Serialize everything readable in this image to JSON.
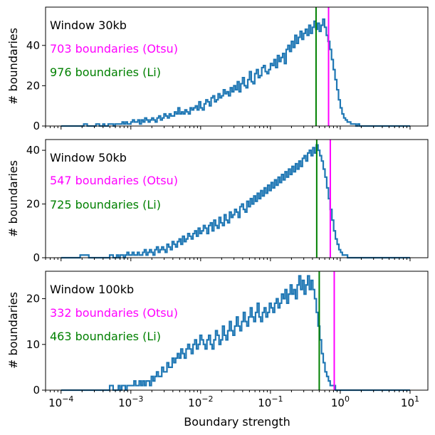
{
  "colors": {
    "hist": "#1f77b4",
    "otsu": "#ff00ff",
    "li": "#008000",
    "text": "#000000"
  },
  "chart_data": [
    {
      "type": "histogram",
      "xscale": "log",
      "xlim": [
        6e-05,
        0.00018
      ],
      "ylim": [
        0,
        59
      ],
      "yticks": [
        0,
        20,
        40
      ],
      "ylabel": "# boundaries",
      "annotations": [
        {
          "text": "Window 30kb",
          "color": "#000000"
        },
        {
          "text": "703 boundaries (Otsu)",
          "color": "#ff00ff"
        },
        {
          "text": "976 boundaries (Li)",
          "color": "#008000"
        }
      ],
      "vlines": [
        {
          "name": "Li threshold",
          "x": 0.45,
          "color": "#008000"
        },
        {
          "name": "Otsu threshold",
          "x": 0.68,
          "color": "#ff00ff"
        }
      ],
      "log_x_range": [
        -4,
        1
      ],
      "counts": [
        0,
        0,
        0,
        0,
        0,
        0,
        0,
        0,
        0,
        0,
        0,
        0,
        0,
        1,
        1,
        0,
        0,
        0,
        0,
        0,
        1,
        1,
        0,
        0,
        1,
        0,
        0,
        1,
        1,
        1,
        0,
        1,
        1,
        1,
        1,
        2,
        1,
        2,
        1,
        1,
        2,
        3,
        2,
        2,
        3,
        1,
        3,
        2,
        4,
        3,
        2,
        3,
        4,
        3,
        2,
        4,
        5,
        3,
        4,
        6,
        5,
        4,
        6,
        5,
        5,
        7,
        6,
        9,
        6,
        7,
        6,
        8,
        7,
        6,
        9,
        8,
        9,
        10,
        8,
        12,
        9,
        8,
        11,
        13,
        12,
        10,
        14,
        15,
        12,
        13,
        16,
        14,
        15,
        18,
        16,
        17,
        15,
        19,
        17,
        20,
        18,
        22,
        17,
        21,
        24,
        20,
        19,
        23,
        27,
        22,
        21,
        26,
        28,
        24,
        25,
        29,
        30,
        27,
        26,
        28,
        31,
        30,
        33,
        29,
        35,
        32,
        34,
        36,
        31,
        38,
        40,
        37,
        42,
        39,
        45,
        41,
        44,
        47,
        43,
        46,
        48,
        45,
        50,
        46,
        49,
        52,
        48,
        51,
        47,
        50,
        53,
        49,
        45,
        42,
        38,
        33,
        28,
        23,
        18,
        13,
        9,
        6,
        4,
        3,
        2,
        2,
        1,
        1,
        1,
        0,
        1,
        0,
        0,
        0,
        0,
        0,
        0,
        0,
        0,
        0,
        0,
        0,
        0,
        0,
        0,
        0,
        0,
        0,
        0,
        0,
        0,
        0,
        0,
        0,
        0,
        0,
        0,
        0,
        0,
        0
      ]
    },
    {
      "type": "histogram",
      "xscale": "log",
      "xlim": [
        6e-05,
        0.00018
      ],
      "ylim": [
        0,
        44
      ],
      "yticks": [
        0,
        20,
        40
      ],
      "ylabel": "# boundaries",
      "annotations": [
        {
          "text": "Window 50kb",
          "color": "#000000"
        },
        {
          "text": "547 boundaries (Otsu)",
          "color": "#ff00ff"
        },
        {
          "text": "725 boundaries (Li)",
          "color": "#008000"
        }
      ],
      "vlines": [
        {
          "name": "Li threshold",
          "x": 0.46,
          "color": "#008000"
        },
        {
          "name": "Otsu threshold",
          "x": 0.72,
          "color": "#ff00ff"
        }
      ],
      "log_x_range": [
        -4,
        1
      ],
      "counts": [
        0,
        0,
        0,
        0,
        0,
        0,
        0,
        0,
        0,
        0,
        0,
        1,
        1,
        1,
        1,
        1,
        0,
        0,
        0,
        0,
        0,
        0,
        0,
        0,
        0,
        0,
        0,
        0,
        1,
        1,
        0,
        0,
        1,
        0,
        1,
        1,
        0,
        1,
        2,
        1,
        1,
        2,
        1,
        1,
        2,
        1,
        1,
        2,
        3,
        1,
        2,
        3,
        2,
        1,
        3,
        4,
        2,
        3,
        4,
        3,
        2,
        5,
        4,
        3,
        6,
        5,
        4,
        6,
        7,
        5,
        8,
        6,
        7,
        9,
        8,
        7,
        9,
        10,
        8,
        11,
        9,
        10,
        12,
        11,
        9,
        12,
        13,
        10,
        14,
        12,
        11,
        15,
        13,
        12,
        16,
        14,
        13,
        17,
        15,
        16,
        18,
        17,
        15,
        19,
        20,
        18,
        17,
        21,
        19,
        22,
        20,
        23,
        21,
        24,
        22,
        25,
        23,
        26,
        24,
        27,
        25,
        28,
        26,
        29,
        27,
        30,
        28,
        31,
        29,
        32,
        30,
        33,
        31,
        34,
        32,
        35,
        33,
        36,
        34,
        37,
        38,
        36,
        39,
        40,
        38,
        41,
        39,
        42,
        40,
        38,
        36,
        33,
        30,
        26,
        22,
        18,
        14,
        10,
        7,
        5,
        3,
        2,
        1,
        1,
        1,
        0,
        0,
        0,
        0,
        0,
        0,
        0,
        0,
        0,
        0,
        0,
        0,
        0,
        0,
        0,
        0,
        0,
        0,
        0,
        0,
        0,
        0,
        0,
        0,
        0,
        0,
        0,
        0,
        0,
        0,
        0,
        0,
        0,
        0,
        0,
        0
      ]
    },
    {
      "type": "histogram",
      "xscale": "log",
      "xlim": [
        6e-05,
        0.00018
      ],
      "ylim": [
        0,
        26
      ],
      "yticks": [
        0,
        10,
        20
      ],
      "ylabel": "# boundaries",
      "xlabel": "Boundary strength",
      "xticks": [
        0.0001,
        0.001,
        0.01,
        0.1,
        1,
        10
      ],
      "xtick_labels": [
        "10",
        "10",
        "10",
        "10",
        "10",
        "10"
      ],
      "xtick_exponents": [
        "−4",
        "−3",
        "−2",
        "−1",
        "0",
        "1"
      ],
      "annotations": [
        {
          "text": "Window 100kb",
          "color": "#000000"
        },
        {
          "text": "332 boundaries (Otsu)",
          "color": "#ff00ff"
        },
        {
          "text": "463 boundaries (Li)",
          "color": "#008000"
        }
      ],
      "vlines": [
        {
          "name": "Li threshold",
          "x": 0.5,
          "color": "#008000"
        },
        {
          "name": "Otsu threshold",
          "x": 0.82,
          "color": "#ff00ff"
        }
      ],
      "log_x_range": [
        -4,
        1
      ],
      "counts": [
        0,
        0,
        0,
        0,
        0,
        0,
        0,
        0,
        0,
        0,
        0,
        0,
        0,
        0,
        0,
        0,
        0,
        0,
        0,
        0,
        0,
        0,
        0,
        0,
        0,
        0,
        0,
        0,
        1,
        1,
        0,
        0,
        0,
        1,
        0,
        1,
        1,
        0,
        1,
        1,
        1,
        1,
        2,
        1,
        1,
        2,
        1,
        2,
        1,
        2,
        2,
        1,
        3,
        2,
        3,
        4,
        3,
        3,
        5,
        4,
        4,
        6,
        5,
        5,
        7,
        6,
        7,
        8,
        7,
        9,
        8,
        7,
        9,
        10,
        9,
        8,
        10,
        11,
        9,
        10,
        12,
        11,
        10,
        9,
        11,
        12,
        10,
        9,
        11,
        13,
        12,
        10,
        11,
        14,
        12,
        11,
        13,
        15,
        13,
        12,
        14,
        16,
        14,
        13,
        15,
        17,
        15,
        14,
        16,
        18,
        16,
        15,
        17,
        19,
        16,
        15,
        17,
        18,
        16,
        17,
        19,
        18,
        17,
        19,
        20,
        18,
        19,
        21,
        20,
        22,
        19,
        21,
        23,
        21,
        22,
        20,
        23,
        25,
        22,
        24,
        21,
        23,
        25,
        22,
        24,
        22,
        20,
        17,
        14,
        11,
        8,
        6,
        4,
        3,
        2,
        1,
        1,
        1,
        0,
        0,
        0,
        0,
        0,
        0,
        0,
        0,
        0,
        0,
        0,
        0,
        0,
        0,
        0,
        0,
        0,
        0,
        0,
        0,
        0,
        0,
        0,
        0,
        0,
        0,
        0,
        0,
        0,
        0,
        0,
        0,
        0,
        0,
        0,
        0,
        0,
        0,
        0,
        0,
        0,
        0,
        0
      ]
    }
  ]
}
